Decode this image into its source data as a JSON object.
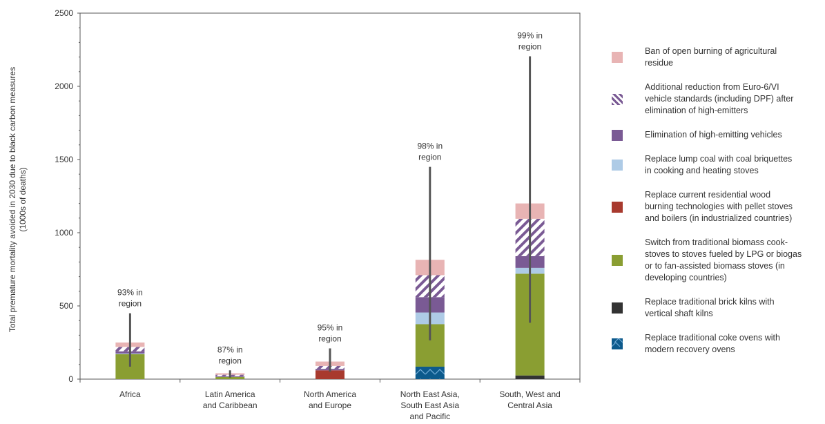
{
  "chart_data": {
    "type": "bar",
    "stacked": true,
    "ylabel_lines": [
      "Total premature mortality avoided  in 2030 due to  black carbon measures",
      "(1000s of  deaths)"
    ],
    "ylim": [
      0,
      2500
    ],
    "yticks": [
      0,
      500,
      1000,
      1500,
      2000,
      2500
    ],
    "ytick_labels": [
      "0",
      "500",
      "1000",
      "1500",
      "2000",
      "2500"
    ],
    "categories": [
      [
        "Africa"
      ],
      [
        "Latin America",
        "and Caribbean"
      ],
      [
        "North America",
        "and Europe"
      ],
      [
        "North East Asia,",
        "South East Asia",
        "and Pacific"
      ],
      [
        "South, West and",
        "Central Asia"
      ]
    ],
    "series": [
      {
        "name": "Replace traditional coke ovens with modern recovery ovens",
        "legend_lines": [
          "Replace traditional coke ovens with",
          "modern recovery ovens"
        ],
        "color": "#0d5a8c",
        "pattern": "zigzag",
        "values": [
          0,
          0,
          0,
          85,
          0
        ]
      },
      {
        "name": "Replace traditional brick kilns with vertical shaft kilns",
        "legend_lines": [
          "Replace traditional brick kilns with",
          "vertical shaft kilns"
        ],
        "color": "#333333",
        "pattern": "solid",
        "values": [
          0,
          0,
          0,
          0,
          25
        ]
      },
      {
        "name": "Switch from traditional biomass cook-stoves to stoves fueled by LPG or biogas or to fan-assisted biomass stoves (in developing countries)",
        "legend_lines": [
          "Switch from traditional biomass cook-",
          "stoves to stoves fueled by LPG or biogas",
          "or to fan-assisted biomass stoves  (in",
          "developing countries)"
        ],
        "color": "#8a9e32",
        "pattern": "solid",
        "values": [
          170,
          15,
          0,
          290,
          695
        ]
      },
      {
        "name": "Replace current residential wood burning technologies with pellet stoves and boilers (in industrialized countries)",
        "legend_lines": [
          "Replace current residential wood",
          "burning technologies with pellet stoves",
          "and boilers (in industrialized countries)"
        ],
        "color": "#a83a2e",
        "pattern": "solid",
        "values": [
          0,
          0,
          60,
          0,
          0
        ]
      },
      {
        "name": "Replace lump coal with coal briquettes in cooking and heating stoves",
        "legend_lines": [
          "Replace lump coal with coal briquettes",
          "in cooking and heating stoves"
        ],
        "color": "#aecbe6",
        "pattern": "solid",
        "values": [
          5,
          0,
          0,
          80,
          40
        ]
      },
      {
        "name": "Elimination of high-emitting vehicles",
        "legend_lines": [
          "Elimination of high-emitting vehicles"
        ],
        "color": "#7a5a94",
        "pattern": "solid",
        "values": [
          15,
          5,
          10,
          105,
          80
        ]
      },
      {
        "name": "Additional reduction from Euro-6/VI vehicle standards (including DPF) after elimination of high-emitters",
        "legend_lines": [
          "Additional reduction from Euro-6/VI",
          "vehicle standards (including DPF) after",
          "elimination of high-emitters"
        ],
        "color": "#7a5a94",
        "pattern": "hatch",
        "values": [
          30,
          10,
          20,
          150,
          255
        ]
      },
      {
        "name": "Ban of open burning of agricultural residue",
        "legend_lines": [
          "Ban of open burning of agricultural",
          "residue"
        ],
        "color": "#e8b4b4",
        "pattern": "solid",
        "values": [
          30,
          10,
          30,
          105,
          105
        ]
      }
    ],
    "ranges": [
      {
        "low": 85,
        "high": 450
      },
      {
        "low": 10,
        "high": 60
      },
      {
        "low": 50,
        "high": 210
      },
      {
        "low": 265,
        "high": 1450
      },
      {
        "low": 385,
        "high": 2205
      }
    ],
    "annotations": [
      [
        "93% in",
        "region"
      ],
      [
        "87% in",
        "region"
      ],
      [
        "95% in",
        "region"
      ],
      [
        "98% in",
        "region"
      ],
      [
        "99% in",
        "region"
      ]
    ],
    "legend_order": [
      7,
      6,
      5,
      4,
      3,
      2,
      1,
      0
    ],
    "legend_position": "right",
    "grid": false
  }
}
